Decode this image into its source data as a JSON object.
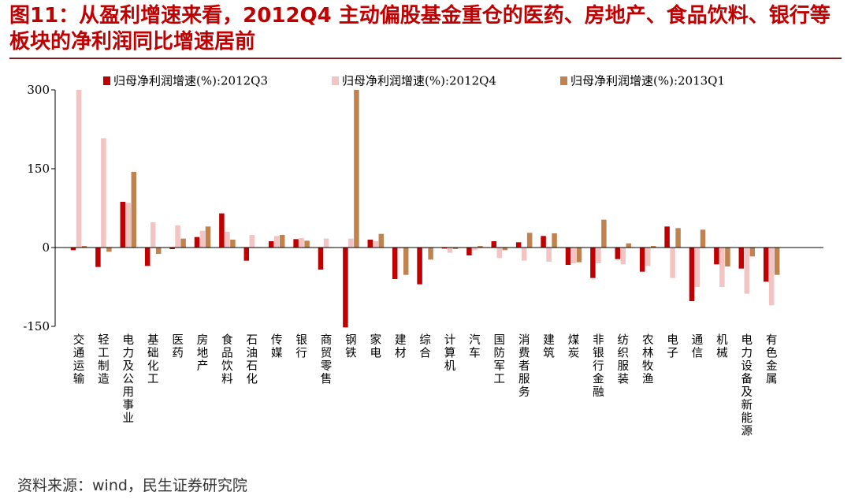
{
  "header": {
    "title": "图11：从盈利增速来看，2012Q4 主动偏股基金重仓的医药、房地产、食品饮料、银行等板块的净利润同比增速居前"
  },
  "footer": {
    "source": "资料来源：wind，民生证券研究院"
  },
  "colors": {
    "title": "#c00000",
    "series_2012Q3": "#c00000",
    "series_2012Q4": "#f2c4c4",
    "series_2013Q1": "#c0834f"
  },
  "chart_data": {
    "type": "bar",
    "title": "",
    "xlabel": "",
    "ylabel": "",
    "ylim": [
      -150,
      300
    ],
    "yticks": [
      300,
      150,
      0,
      -150
    ],
    "ytick_labels": [
      "300",
      "150",
      "0",
      "-150"
    ],
    "grid": false,
    "legend_position": "top",
    "categories": [
      "交通运输",
      "轻工制造",
      "电力及公用事业",
      "基础化工",
      "医药",
      "房地产",
      "食品饮料",
      "石油石化",
      "传媒",
      "银行",
      "商贸零售",
      "钢铁",
      "家电",
      "建材",
      "综合",
      "计算机",
      "汽车",
      "国防军工",
      "消费者服务",
      "建筑",
      "煤炭",
      "非银行金融",
      "纺织服装",
      "农林牧渔",
      "电子",
      "通信",
      "机械",
      "电力设备及新能源",
      "有色金属"
    ],
    "series": [
      {
        "name": "归母净利润增速(%):2012Q3",
        "values": [
          -5,
          -37,
          87,
          -35,
          -3,
          20,
          65,
          -25,
          12,
          16,
          -42,
          -152,
          15,
          -60,
          -70,
          -2,
          -15,
          12,
          10,
          22,
          -33,
          -58,
          -22,
          -46,
          40,
          -102,
          -32,
          -40,
          -65
        ]
      },
      {
        "name": "归母净利润增速(%):2012Q4",
        "values": [
          300,
          208,
          85,
          48,
          42,
          32,
          30,
          24,
          22,
          18,
          17,
          17,
          12,
          -2,
          -2,
          -10,
          -5,
          -20,
          -25,
          -27,
          -30,
          -30,
          -32,
          -35,
          -58,
          -75,
          -75,
          -88,
          -110
        ]
      },
      {
        "name": "归母净利润增速(%):2013Q1",
        "values": [
          3,
          -8,
          144,
          -12,
          17,
          40,
          15,
          0,
          24,
          13,
          0,
          300,
          26,
          -52,
          -23,
          -3,
          3,
          -5,
          28,
          27,
          -28,
          53,
          8,
          3,
          37,
          34,
          -36,
          -17,
          -52
        ]
      }
    ]
  }
}
